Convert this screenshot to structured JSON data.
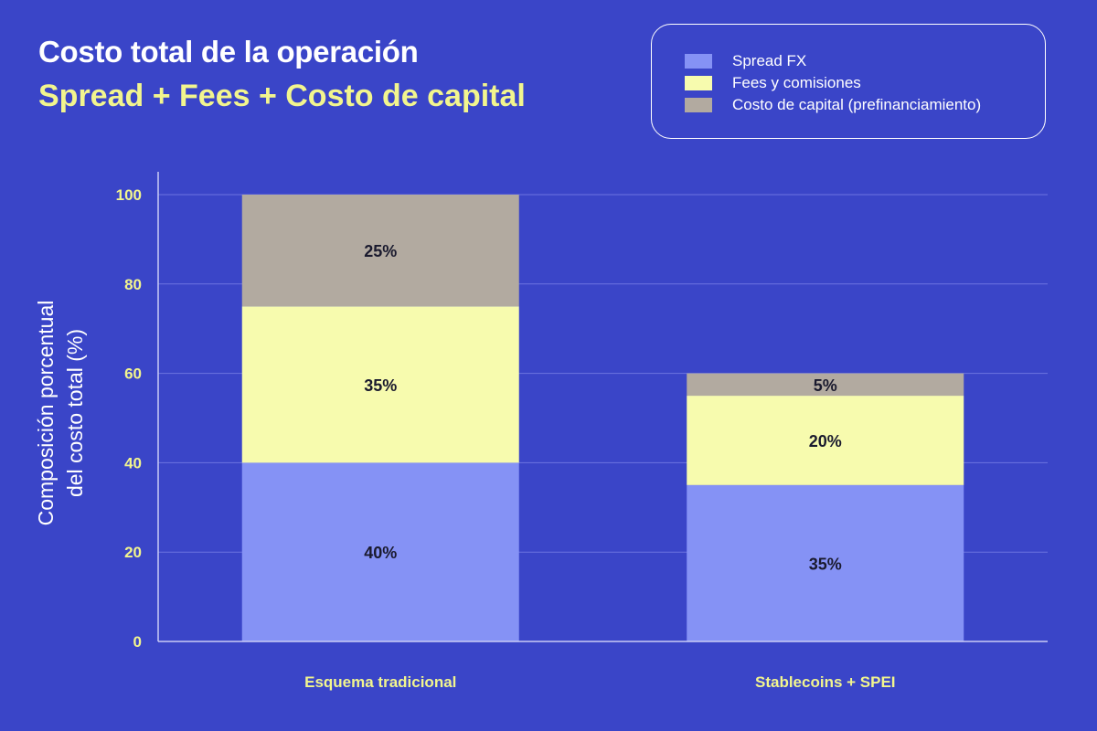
{
  "title": "Costo total de la operación",
  "subtitle": "Spread + Fees + Costo de capital",
  "legend": {
    "items": [
      {
        "label": "Spread FX",
        "color": "#8592f5"
      },
      {
        "label": "Fees y comisiones",
        "color": "#f7fbae"
      },
      {
        "label": "Costo de capital (prefinanciamiento)",
        "color": "#b2aaa0"
      }
    ]
  },
  "ylabel_lines": [
    "Composición porcentual",
    "del costo total (%)"
  ],
  "chart_data": {
    "type": "bar",
    "stacked": true,
    "title": "Costo total de la operación",
    "subtitle": "Spread + Fees + Costo de capital",
    "xlabel": "",
    "ylabel": "Composición porcentual del costo total (%)",
    "ylim": [
      0,
      100
    ],
    "yticks": [
      0,
      20,
      40,
      60,
      80,
      100
    ],
    "grid": true,
    "legend_position": "top-right",
    "categories": [
      "Esquema tradicional",
      "Stablecoins + SPEI"
    ],
    "series": [
      {
        "name": "Spread FX",
        "values": [
          40,
          35
        ],
        "labels": [
          "40%",
          "35%"
        ],
        "color": "#8592f5"
      },
      {
        "name": "Fees y comisiones",
        "values": [
          35,
          20
        ],
        "labels": [
          "35%",
          "20%"
        ],
        "color": "#f7fbae"
      },
      {
        "name": "Costo de capital (prefinanciamiento)",
        "values": [
          25,
          5
        ],
        "labels": [
          "25%",
          "5%"
        ],
        "color": "#b2aaa0"
      }
    ]
  }
}
